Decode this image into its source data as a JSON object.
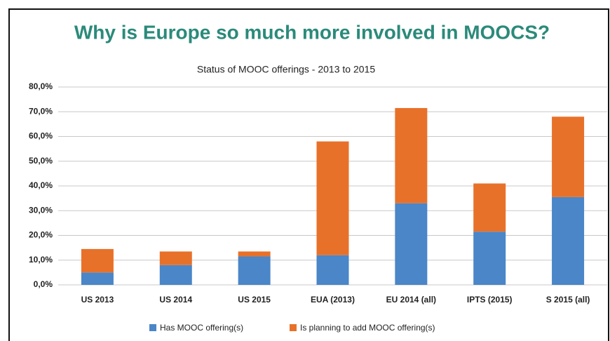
{
  "chart_data": {
    "type": "stacked_bar",
    "heading": "Why is Europe so much more involved in MOOCS?",
    "title": "Status of MOOC offerings - 2013 to 2015",
    "categories": [
      "US 2013",
      "US 2014",
      "US 2015",
      "EUA (2013)",
      "EU 2014 (all)",
      "IPTS (2015)",
      "S 2015 (all)"
    ],
    "series": [
      {
        "name": "Has MOOC offering(s)",
        "color": "#4a86c8",
        "values": [
          5,
          8,
          11.5,
          12,
          33,
          21.5,
          35.5
        ]
      },
      {
        "name": "Is planning to add MOOC offering(s)",
        "color": "#e8712a",
        "values": [
          9.5,
          5.5,
          2,
          46,
          38.5,
          19.5,
          32.5
        ]
      }
    ],
    "ylim": [
      0,
      80
    ],
    "yticks": [
      {
        "value": 0,
        "label": "0,0%"
      },
      {
        "value": 10,
        "label": "10,0%"
      },
      {
        "value": 20,
        "label": "20,0%"
      },
      {
        "value": 30,
        "label": "30,0%"
      },
      {
        "value": 40,
        "label": "40,0%"
      },
      {
        "value": 50,
        "label": "50,0%"
      },
      {
        "value": 60,
        "label": "60,0%"
      },
      {
        "value": 70,
        "label": "70,0%"
      },
      {
        "value": 80,
        "label": "80,0%"
      }
    ],
    "grid": true,
    "legend": "bottom"
  }
}
